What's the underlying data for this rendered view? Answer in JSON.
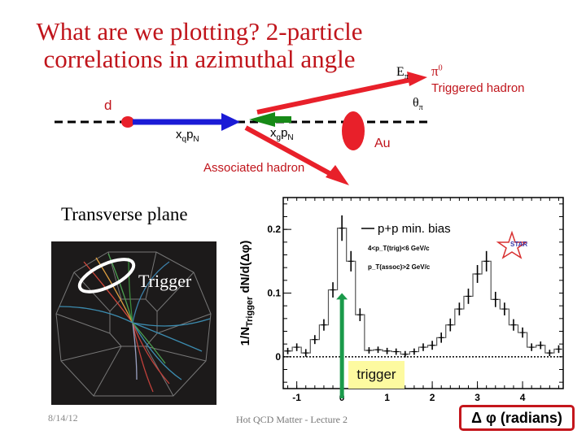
{
  "slide": {
    "title_line1": "What are we plotting? 2-particle",
    "title_line2": "correlations in azimuthal angle",
    "footer_date": "8/14/12",
    "footer_center": "Hot QCD Matter - Lecture 2"
  },
  "diagram": {
    "d_label": "d",
    "au_label": "Au",
    "xq_label": "x",
    "xq_sub": "q",
    "xg_label": "x",
    "xg_sub": "g",
    "pN_label": "p",
    "pN_sub": "N",
    "e_pi": "E",
    "e_pi_sub": "π",
    "theta_pi": "θ",
    "theta_pi_sub": "π",
    "pi0": "π",
    "pi0_sup": "0",
    "triggered_hadron": "Triggered hadron",
    "associated_hadron": "Associated hadron",
    "colors": {
      "red": "#e8202a",
      "blue": "#1b1bd6",
      "green": "#178a17",
      "label_red": "#c0141b"
    }
  },
  "event_display": {
    "title": "Transverse plane",
    "trigger_label": "Trigger"
  },
  "chart_data": {
    "type": "bar",
    "title": "",
    "xlabel": "Δ φ (radians)",
    "ylabel": "1/N_Trigger dN/d(Δφ)",
    "xlim": [
      -1.3,
      4.9
    ],
    "ylim": [
      -0.05,
      0.25
    ],
    "xticks": [
      "-1",
      "0",
      "1",
      "2",
      "3",
      "4"
    ],
    "yticks": [
      "0",
      "0.1",
      "0.2"
    ],
    "legend": "p+p min. bias",
    "annotations": [
      "4<p_T(trig)<6 GeV/c",
      "p_T(assoc)>2 GeV/c",
      "STAR",
      "trigger"
    ],
    "bin_width": 0.2,
    "x": [
      -1.2,
      -1.0,
      -0.8,
      -0.6,
      -0.4,
      -0.2,
      0.0,
      0.2,
      0.4,
      0.6,
      0.8,
      1.0,
      1.2,
      1.4,
      1.6,
      1.8,
      2.0,
      2.2,
      2.4,
      2.6,
      2.8,
      3.0,
      3.2,
      3.4,
      3.6,
      3.8,
      4.0,
      4.2,
      4.4,
      4.6,
      4.8
    ],
    "values": [
      0.009,
      0.015,
      0.006,
      0.027,
      0.05,
      0.105,
      0.202,
      0.15,
      0.066,
      0.01,
      0.011,
      0.009,
      0.008,
      0.004,
      0.008,
      0.015,
      0.018,
      0.03,
      0.05,
      0.075,
      0.095,
      0.13,
      0.15,
      0.09,
      0.075,
      0.05,
      0.038,
      0.015,
      0.018,
      0.006,
      0.012
    ],
    "errors": [
      0.005,
      0.006,
      0.006,
      0.007,
      0.009,
      0.012,
      0.02,
      0.016,
      0.01,
      0.005,
      0.005,
      0.005,
      0.005,
      0.005,
      0.005,
      0.006,
      0.007,
      0.008,
      0.01,
      0.01,
      0.012,
      0.014,
      0.016,
      0.012,
      0.01,
      0.009,
      0.008,
      0.006,
      0.006,
      0.005,
      0.006
    ],
    "trigger_arrow_x": 0,
    "grid": false,
    "legend_position": "upper center"
  }
}
